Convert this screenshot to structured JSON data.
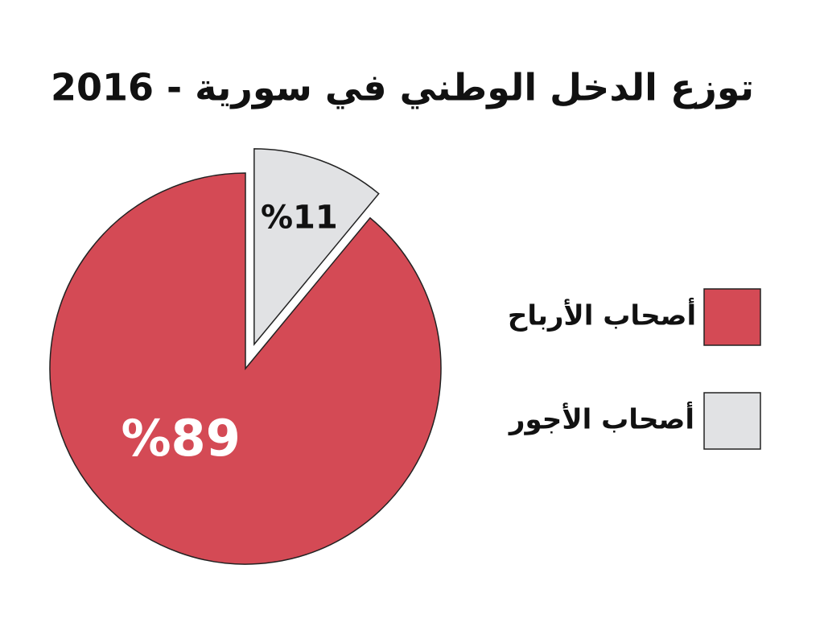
{
  "chart_data": {
    "type": "pie",
    "title": "توزع الدخل الوطني في سورية - 2016",
    "categories": [
      "أصحاب الأرباح",
      "أصحاب الأجور"
    ],
    "values": [
      89,
      11
    ],
    "value_labels": [
      "%89",
      "%11"
    ],
    "colors": [
      "#d44a55",
      "#e1e2e4"
    ],
    "exploded": [
      false,
      true
    ],
    "direction": "counterclockwise",
    "legend": "right"
  }
}
